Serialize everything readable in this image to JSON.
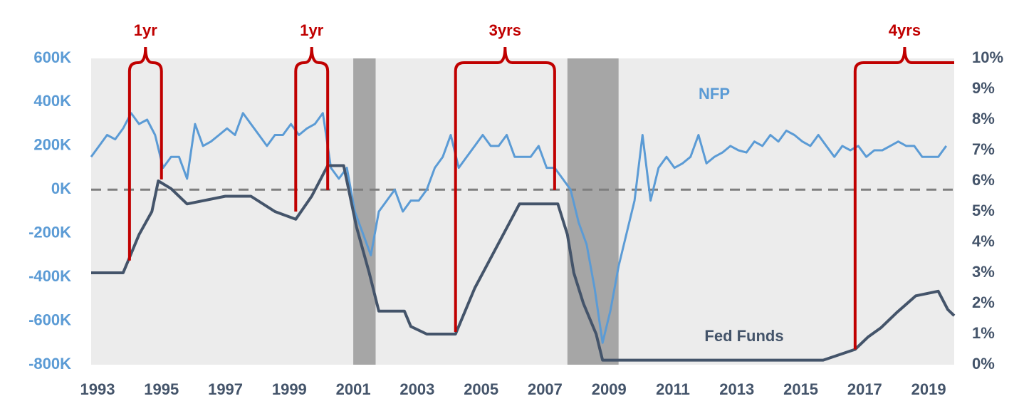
{
  "chart_data": {
    "type": "line",
    "xlim": [
      1993,
      2020
    ],
    "xticks": [
      1993,
      1995,
      1997,
      1999,
      2001,
      2003,
      2005,
      2007,
      2009,
      2011,
      2013,
      2015,
      2017,
      2019
    ],
    "ylim": [
      -800000,
      600000
    ],
    "yticks": [
      {
        "value": -800000,
        "label": "-800K"
      },
      {
        "value": -600000,
        "label": "-600K"
      },
      {
        "value": -400000,
        "label": "-400K"
      },
      {
        "value": -200000,
        "label": "-200K"
      },
      {
        "value": 0,
        "label": "0K"
      },
      {
        "value": 200000,
        "label": "200K"
      },
      {
        "value": 400000,
        "label": "400K"
      },
      {
        "value": 600000,
        "label": "600K"
      }
    ],
    "y2lim": [
      0,
      10
    ],
    "y2ticks": [
      {
        "value": 0,
        "label": "0%"
      },
      {
        "value": 1,
        "label": "1%"
      },
      {
        "value": 2,
        "label": "2%"
      },
      {
        "value": 3,
        "label": "3%"
      },
      {
        "value": 4,
        "label": "4%"
      },
      {
        "value": 5,
        "label": "5%"
      },
      {
        "value": 6,
        "label": "6%"
      },
      {
        "value": 7,
        "label": "7%"
      },
      {
        "value": 8,
        "label": "8%"
      },
      {
        "value": 9,
        "label": "9%"
      },
      {
        "value": 10,
        "label": "10%"
      }
    ],
    "hline": 0,
    "recessions": [
      [
        2001.2,
        2001.9
      ],
      [
        2007.9,
        2009.5
      ]
    ],
    "series": [
      {
        "name": "NFP",
        "color": "#5b9bd5",
        "x": [
          1993,
          1993.25,
          1993.5,
          1993.75,
          1994,
          1994.25,
          1994.5,
          1994.75,
          1995,
          1995.25,
          1995.5,
          1995.75,
          1996,
          1996.25,
          1996.5,
          1996.75,
          1997,
          1997.25,
          1997.5,
          1997.75,
          1998,
          1998.25,
          1998.5,
          1998.75,
          1999,
          1999.25,
          1999.5,
          1999.75,
          2000,
          2000.25,
          2000.5,
          2000.75,
          2001,
          2001.25,
          2001.5,
          2001.75,
          2002,
          2002.25,
          2002.5,
          2002.75,
          2003,
          2003.25,
          2003.5,
          2003.75,
          2004,
          2004.25,
          2004.5,
          2004.75,
          2005,
          2005.25,
          2005.5,
          2005.75,
          2006,
          2006.25,
          2006.5,
          2006.75,
          2007,
          2007.25,
          2007.5,
          2007.75,
          2008,
          2008.25,
          2008.5,
          2008.75,
          2009,
          2009.25,
          2009.5,
          2009.75,
          2010,
          2010.25,
          2010.5,
          2010.75,
          2011,
          2011.25,
          2011.5,
          2011.75,
          2012,
          2012.25,
          2012.5,
          2012.75,
          2013,
          2013.25,
          2013.5,
          2013.75,
          2014,
          2014.25,
          2014.5,
          2014.75,
          2015,
          2015.25,
          2015.5,
          2015.75,
          2016,
          2016.25,
          2016.5,
          2016.75,
          2017,
          2017.25,
          2017.5,
          2017.75,
          2018,
          2018.25,
          2018.5,
          2018.75,
          2019,
          2019.25,
          2019.5,
          2019.75
        ],
        "values": [
          150000,
          200000,
          250000,
          230000,
          280000,
          350000,
          300000,
          320000,
          250000,
          100000,
          150000,
          150000,
          50000,
          300000,
          200000,
          220000,
          250000,
          280000,
          250000,
          350000,
          300000,
          250000,
          200000,
          250000,
          250000,
          300000,
          250000,
          280000,
          300000,
          350000,
          100000,
          50000,
          100000,
          -100000,
          -200000,
          -300000,
          -100000,
          -50000,
          0,
          -100000,
          -50000,
          -50000,
          0,
          100000,
          150000,
          250000,
          100000,
          150000,
          200000,
          250000,
          200000,
          200000,
          250000,
          150000,
          150000,
          150000,
          200000,
          100000,
          100000,
          50000,
          0,
          -150000,
          -250000,
          -450000,
          -700000,
          -550000,
          -350000,
          -200000,
          -50000,
          250000,
          -50000,
          100000,
          150000,
          100000,
          120000,
          150000,
          250000,
          120000,
          150000,
          170000,
          200000,
          180000,
          170000,
          220000,
          200000,
          250000,
          220000,
          270000,
          250000,
          220000,
          200000,
          250000,
          200000,
          150000,
          200000,
          180000,
          200000,
          150000,
          180000,
          180000,
          200000,
          220000,
          200000,
          200000,
          150000,
          150000,
          150000,
          200000
        ]
      },
      {
        "name": "Fed Funds",
        "color": "#44546a",
        "axis": "y2",
        "x": [
          1993,
          1994,
          1994.2,
          1994.5,
          1994.9,
          1995.1,
          1995.5,
          1996,
          1997.2,
          1998,
          1998.75,
          1999.4,
          1999.9,
          2000.4,
          2000.9,
          2001.3,
          2001.7,
          2002,
          2002.8,
          2003,
          2003.5,
          2004.4,
          2005,
          2006.4,
          2007.6,
          2007.9,
          2008.1,
          2008.4,
          2008.8,
          2009,
          2015.9,
          2016.9,
          2017.3,
          2017.7,
          2018.2,
          2018.8,
          2019.5,
          2019.8,
          2020
        ],
        "values": [
          3,
          3,
          3.5,
          4.25,
          5,
          6,
          5.75,
          5.25,
          5.5,
          5.5,
          5,
          4.75,
          5.5,
          6.5,
          6.5,
          4.5,
          3,
          1.75,
          1.75,
          1.25,
          1,
          1,
          2.5,
          5.25,
          5.25,
          4.25,
          3,
          2,
          1,
          0.15,
          0.15,
          0.5,
          0.9,
          1.2,
          1.7,
          2.25,
          2.4,
          1.8,
          1.6
        ]
      }
    ],
    "annotations": [
      {
        "label": "1yr",
        "x": [
          1994.2,
          1995.2
        ],
        "y2": [
          3.4,
          6.05
        ]
      },
      {
        "label": "1yr",
        "x": [
          1999.4,
          2000.4
        ],
        "y2": [
          5.0,
          5.7
        ]
      },
      {
        "label": "3yrs",
        "x": [
          2004.4,
          2007.5
        ],
        "y2": [
          1.07,
          5.7
        ]
      },
      {
        "label": "4yrs",
        "x": [
          2016.9,
          2020
        ],
        "y2": [
          0.5,
          10
        ]
      }
    ]
  }
}
